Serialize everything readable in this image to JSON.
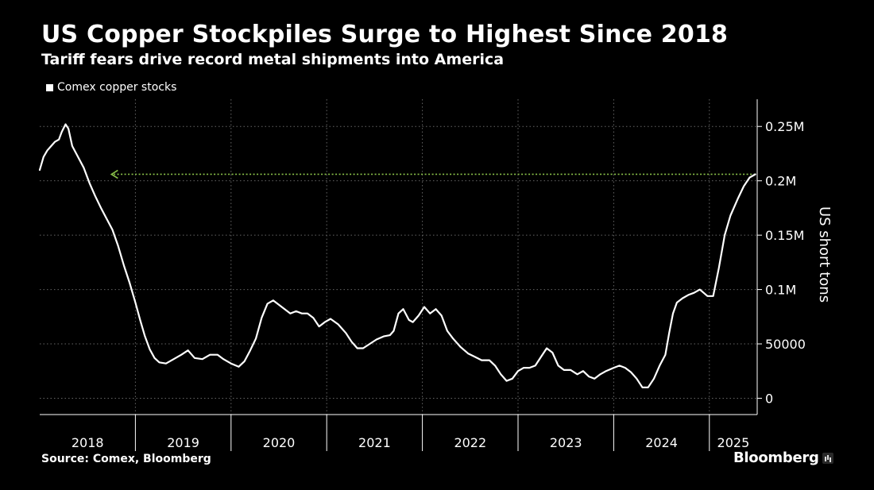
{
  "header": {
    "title": "US Copper Stockpiles Surge to Highest Since 2018",
    "subtitle": "Tariff fears drive record metal shipments into America"
  },
  "legend": {
    "label": "Comex copper stocks"
  },
  "footer": {
    "source": "Source: Comex, Bloomberg",
    "brand": "Bloomberg"
  },
  "colors": {
    "background": "#000000",
    "line": "#ffffff",
    "reference_arrow": "#8bc34a",
    "grid": "#666666"
  },
  "chart_data": {
    "type": "line",
    "title": "US Copper Stockpiles Surge to Highest Since 2018",
    "subtitle": "Tariff fears drive record metal shipments into America",
    "ylabel": "US short tons",
    "ylim": [
      -15000,
      275000
    ],
    "xlim": [
      2018.0,
      2025.5
    ],
    "x_ticks": [
      "2018",
      "2019",
      "2020",
      "2021",
      "2022",
      "2023",
      "2024",
      "2025"
    ],
    "y_ticks": [
      {
        "value": 0,
        "label": "0"
      },
      {
        "value": 50000,
        "label": "50000"
      },
      {
        "value": 100000,
        "label": "0.1M"
      },
      {
        "value": 150000,
        "label": "0.15M"
      },
      {
        "value": 200000,
        "label": "0.2M"
      },
      {
        "value": 250000,
        "label": "0.25M"
      }
    ],
    "grid": true,
    "legend_position": "top-left",
    "annotation": {
      "type": "arrow",
      "y": 206000,
      "from_x": 2025.48,
      "to_x": 2018.75,
      "style": "dotted"
    },
    "series": [
      {
        "name": "Comex copper stocks",
        "points": [
          [
            2018.0,
            210000
          ],
          [
            2018.04,
            222000
          ],
          [
            2018.08,
            228000
          ],
          [
            2018.12,
            232000
          ],
          [
            2018.16,
            236000
          ],
          [
            2018.2,
            238000
          ],
          [
            2018.23,
            245000
          ],
          [
            2018.27,
            252000
          ],
          [
            2018.3,
            248000
          ],
          [
            2018.34,
            232000
          ],
          [
            2018.4,
            222000
          ],
          [
            2018.46,
            212000
          ],
          [
            2018.52,
            198000
          ],
          [
            2018.58,
            186000
          ],
          [
            2018.64,
            175000
          ],
          [
            2018.7,
            165000
          ],
          [
            2018.76,
            155000
          ],
          [
            2018.82,
            140000
          ],
          [
            2018.88,
            122000
          ],
          [
            2018.94,
            106000
          ],
          [
            2019.0,
            88000
          ],
          [
            2019.05,
            72000
          ],
          [
            2019.1,
            57000
          ],
          [
            2019.15,
            45000
          ],
          [
            2019.2,
            37000
          ],
          [
            2019.25,
            33000
          ],
          [
            2019.32,
            32000
          ],
          [
            2019.4,
            36000
          ],
          [
            2019.48,
            40000
          ],
          [
            2019.55,
            44000
          ],
          [
            2019.62,
            37000
          ],
          [
            2019.7,
            36000
          ],
          [
            2019.78,
            40000
          ],
          [
            2019.86,
            40000
          ],
          [
            2019.92,
            36000
          ],
          [
            2020.0,
            32000
          ],
          [
            2020.08,
            29000
          ],
          [
            2020.14,
            34000
          ],
          [
            2020.2,
            44000
          ],
          [
            2020.26,
            55000
          ],
          [
            2020.32,
            74000
          ],
          [
            2020.38,
            87000
          ],
          [
            2020.44,
            90000
          ],
          [
            2020.5,
            86000
          ],
          [
            2020.56,
            82000
          ],
          [
            2020.62,
            78000
          ],
          [
            2020.68,
            80000
          ],
          [
            2020.74,
            78000
          ],
          [
            2020.8,
            78000
          ],
          [
            2020.86,
            74000
          ],
          [
            2020.92,
            66000
          ],
          [
            2020.98,
            70000
          ],
          [
            2021.04,
            73000
          ],
          [
            2021.12,
            68000
          ],
          [
            2021.2,
            60000
          ],
          [
            2021.26,
            52000
          ],
          [
            2021.32,
            46000
          ],
          [
            2021.38,
            46000
          ],
          [
            2021.45,
            50000
          ],
          [
            2021.52,
            54000
          ],
          [
            2021.6,
            57000
          ],
          [
            2021.66,
            58000
          ],
          [
            2021.7,
            62000
          ],
          [
            2021.75,
            78000
          ],
          [
            2021.8,
            82000
          ],
          [
            2021.86,
            72000
          ],
          [
            2021.9,
            70000
          ],
          [
            2021.96,
            76000
          ],
          [
            2022.02,
            84000
          ],
          [
            2022.08,
            78000
          ],
          [
            2022.14,
            82000
          ],
          [
            2022.2,
            76000
          ],
          [
            2022.26,
            62000
          ],
          [
            2022.32,
            55000
          ],
          [
            2022.4,
            47000
          ],
          [
            2022.48,
            41000
          ],
          [
            2022.55,
            38000
          ],
          [
            2022.62,
            35000
          ],
          [
            2022.7,
            35000
          ],
          [
            2022.76,
            30000
          ],
          [
            2022.82,
            22000
          ],
          [
            2022.88,
            16000
          ],
          [
            2022.94,
            18000
          ],
          [
            2023.0,
            25000
          ],
          [
            2023.06,
            28000
          ],
          [
            2023.12,
            28000
          ],
          [
            2023.18,
            30000
          ],
          [
            2023.24,
            38000
          ],
          [
            2023.3,
            46000
          ],
          [
            2023.36,
            42000
          ],
          [
            2023.42,
            30000
          ],
          [
            2023.48,
            26000
          ],
          [
            2023.55,
            26000
          ],
          [
            2023.62,
            22000
          ],
          [
            2023.68,
            25000
          ],
          [
            2023.74,
            20000
          ],
          [
            2023.8,
            18000
          ],
          [
            2023.86,
            22000
          ],
          [
            2023.92,
            25000
          ],
          [
            2024.0,
            28000
          ],
          [
            2024.06,
            30000
          ],
          [
            2024.12,
            28000
          ],
          [
            2024.18,
            24000
          ],
          [
            2024.24,
            18000
          ],
          [
            2024.3,
            10000
          ],
          [
            2024.36,
            10000
          ],
          [
            2024.42,
            18000
          ],
          [
            2024.48,
            30000
          ],
          [
            2024.54,
            40000
          ],
          [
            2024.58,
            60000
          ],
          [
            2024.62,
            78000
          ],
          [
            2024.66,
            88000
          ],
          [
            2024.72,
            92000
          ],
          [
            2024.78,
            95000
          ],
          [
            2024.84,
            97000
          ],
          [
            2024.9,
            100000
          ],
          [
            2024.94,
            97000
          ],
          [
            2024.98,
            94000
          ],
          [
            2025.04,
            94000
          ],
          [
            2025.1,
            120000
          ],
          [
            2025.16,
            150000
          ],
          [
            2025.22,
            168000
          ],
          [
            2025.3,
            184000
          ],
          [
            2025.36,
            195000
          ],
          [
            2025.42,
            203000
          ],
          [
            2025.48,
            206000
          ]
        ]
      }
    ]
  }
}
